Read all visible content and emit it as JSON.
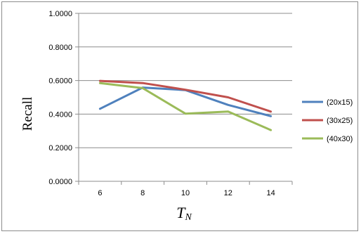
{
  "chart_data": {
    "type": "line",
    "xlabel": "T",
    "xlabel_sub": "N",
    "ylabel": "Recall",
    "categories": [
      "6",
      "8",
      "10",
      "12",
      "14"
    ],
    "ylim": [
      0,
      1
    ],
    "yticks": [
      "0.0000",
      "0.2000",
      "0.4000",
      "0.6000",
      "0.8000",
      "1.0000"
    ],
    "grid": "horizontal",
    "legend_position": "right",
    "series": [
      {
        "name": "(20x15)",
        "color": "#4f81bd",
        "values": [
          0.432,
          0.558,
          0.543,
          0.455,
          0.388
        ]
      },
      {
        "name": "(30x25)",
        "color": "#c0504d",
        "values": [
          0.598,
          0.585,
          0.545,
          0.5,
          0.415
        ]
      },
      {
        "name": "(40x30)",
        "color": "#9bbb59",
        "values": [
          0.585,
          0.555,
          0.403,
          0.415,
          0.305
        ]
      }
    ]
  }
}
